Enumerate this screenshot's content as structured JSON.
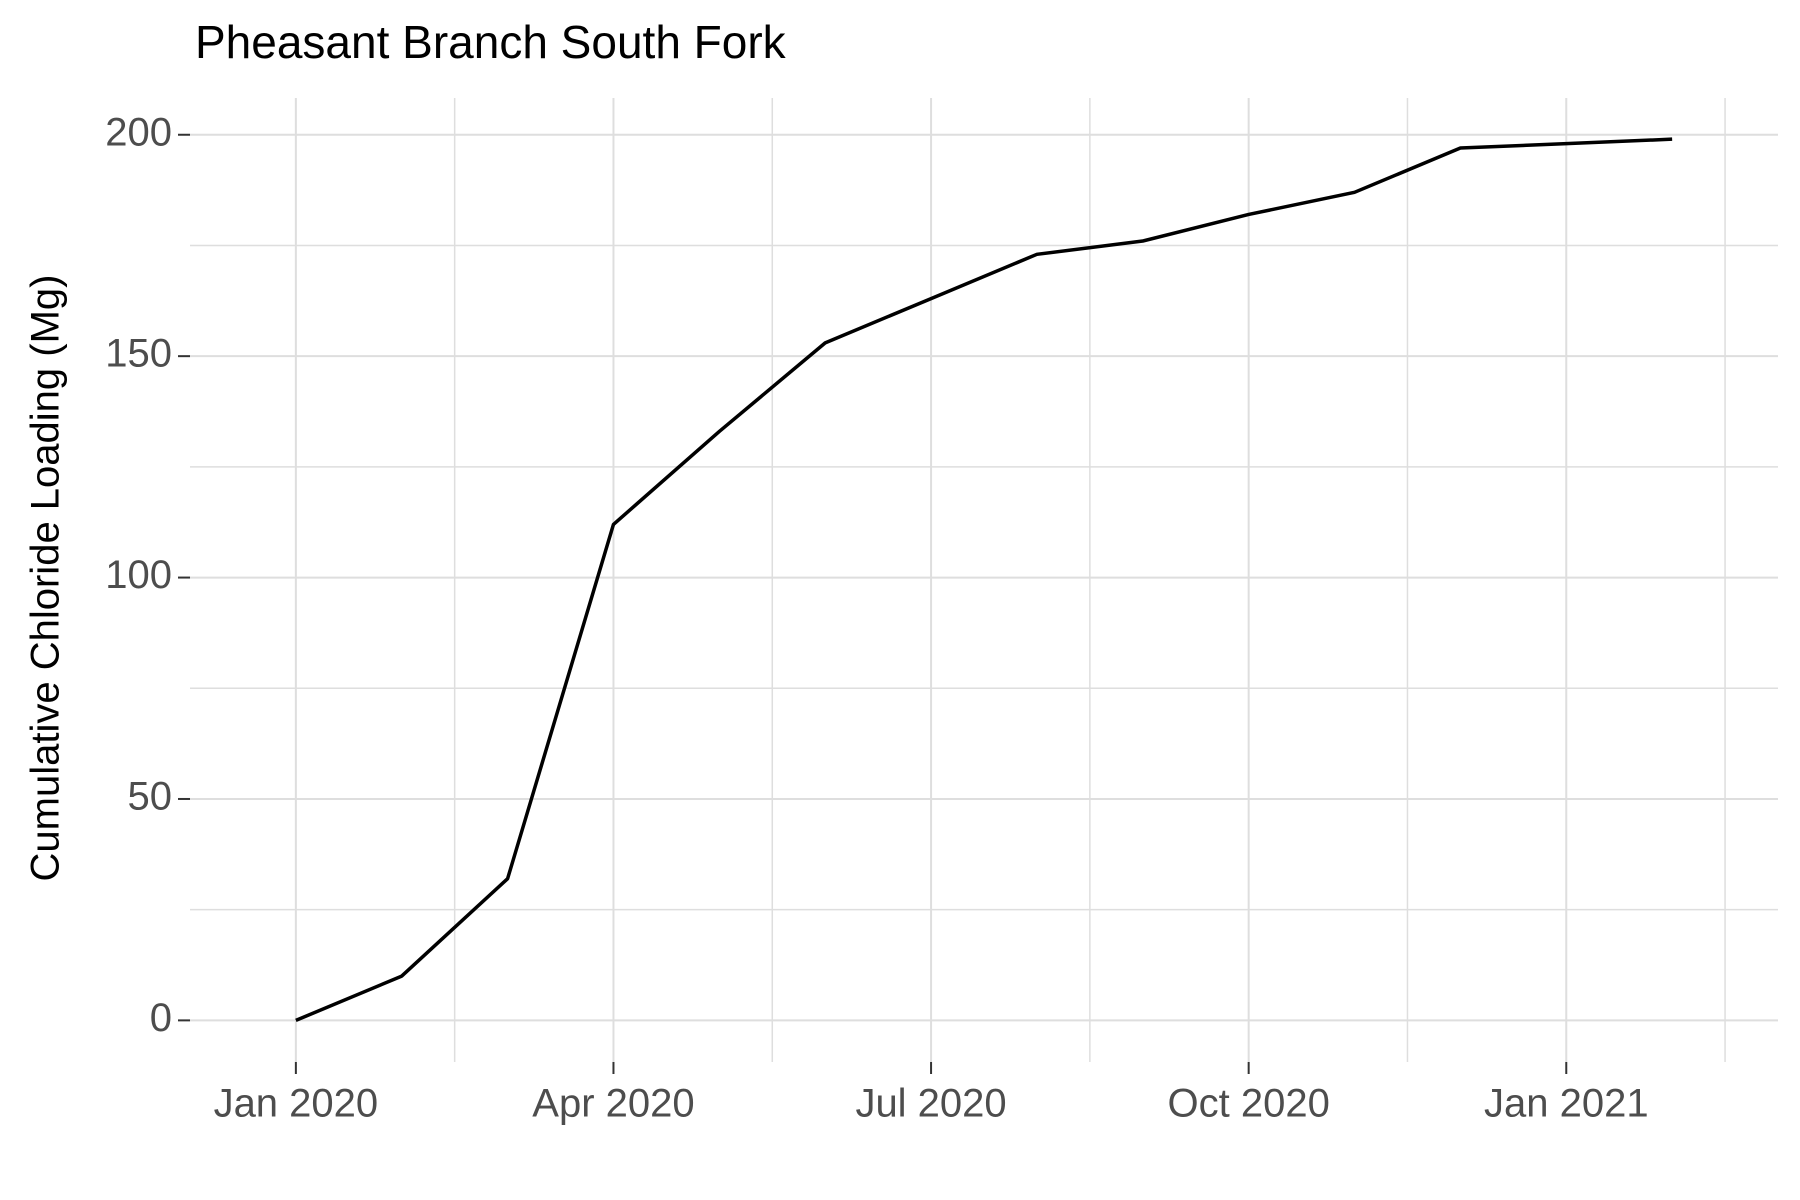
{
  "chart_data": {
    "type": "line",
    "title": "Pheasant Branch South Fork",
    "y_label": "Cumulative Chloride Loading (Mg)",
    "x": [
      "2020-01",
      "2020-02",
      "2020-03",
      "2020-04",
      "2020-05",
      "2020-06",
      "2020-07",
      "2020-08",
      "2020-09",
      "2020-10",
      "2020-11",
      "2020-12",
      "2021-01",
      "2021-02"
    ],
    "series": [
      {
        "color": "#000000",
        "values": [
          0,
          10,
          32,
          112,
          133,
          153,
          163,
          173,
          176,
          182,
          187,
          197,
          198,
          199
        ]
      }
    ],
    "xlim": [
      "2019-12",
      "2021-03"
    ],
    "xticks": [
      {
        "value": "2020-01",
        "label": "Jan 2020"
      },
      {
        "value": "2020-04",
        "label": "Apr 2020"
      },
      {
        "value": "2020-07",
        "label": "Jul 2020"
      },
      {
        "value": "2020-10",
        "label": "Oct 2020"
      },
      {
        "value": "2021-01",
        "label": "Jan 2021"
      }
    ],
    "ylim": [
      -9.4,
      208.3
    ],
    "yticks": [
      0,
      50,
      100,
      150,
      200
    ],
    "grid": true
  }
}
